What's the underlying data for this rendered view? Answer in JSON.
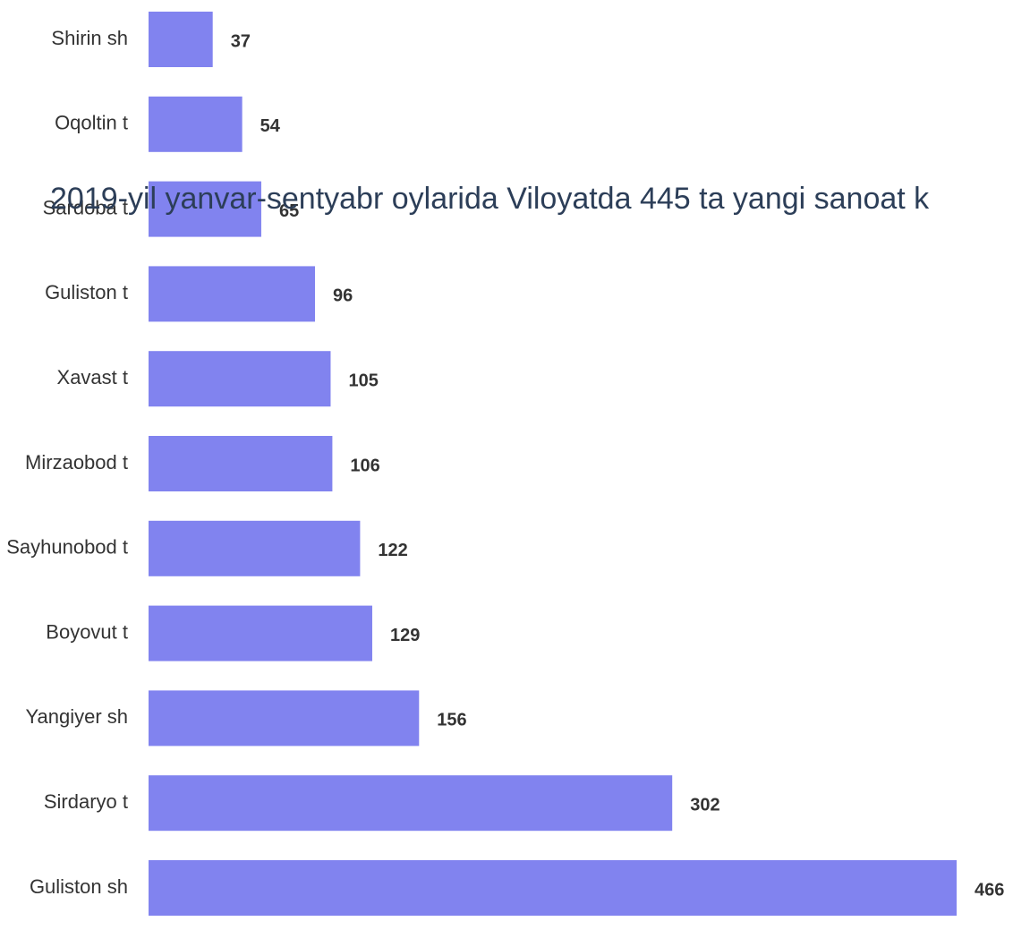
{
  "overlay_text": "2019-yil yanvar-sentyabr oylarida Viloyatda 445 ta yangi sanoat k",
  "colors": {
    "bar": "#8183ef",
    "label": "#333333",
    "overlay_text": "#2c3e58"
  },
  "chart_data": {
    "type": "bar",
    "orientation": "horizontal",
    "categories": [
      "Shirin sh",
      "Oqoltin t",
      "Sardoba t",
      "Guliston t",
      "Xavast t",
      "Mirzaobod t",
      "Sayhunobod t",
      "Boyovut t",
      "Yangiyer sh",
      "Sirdaryo t",
      "Guliston sh"
    ],
    "values": [
      37,
      54,
      65,
      96,
      105,
      106,
      122,
      129,
      156,
      302,
      466
    ],
    "data_labels": true,
    "grid": false,
    "legend": false,
    "xlim": [
      0,
      466
    ]
  }
}
